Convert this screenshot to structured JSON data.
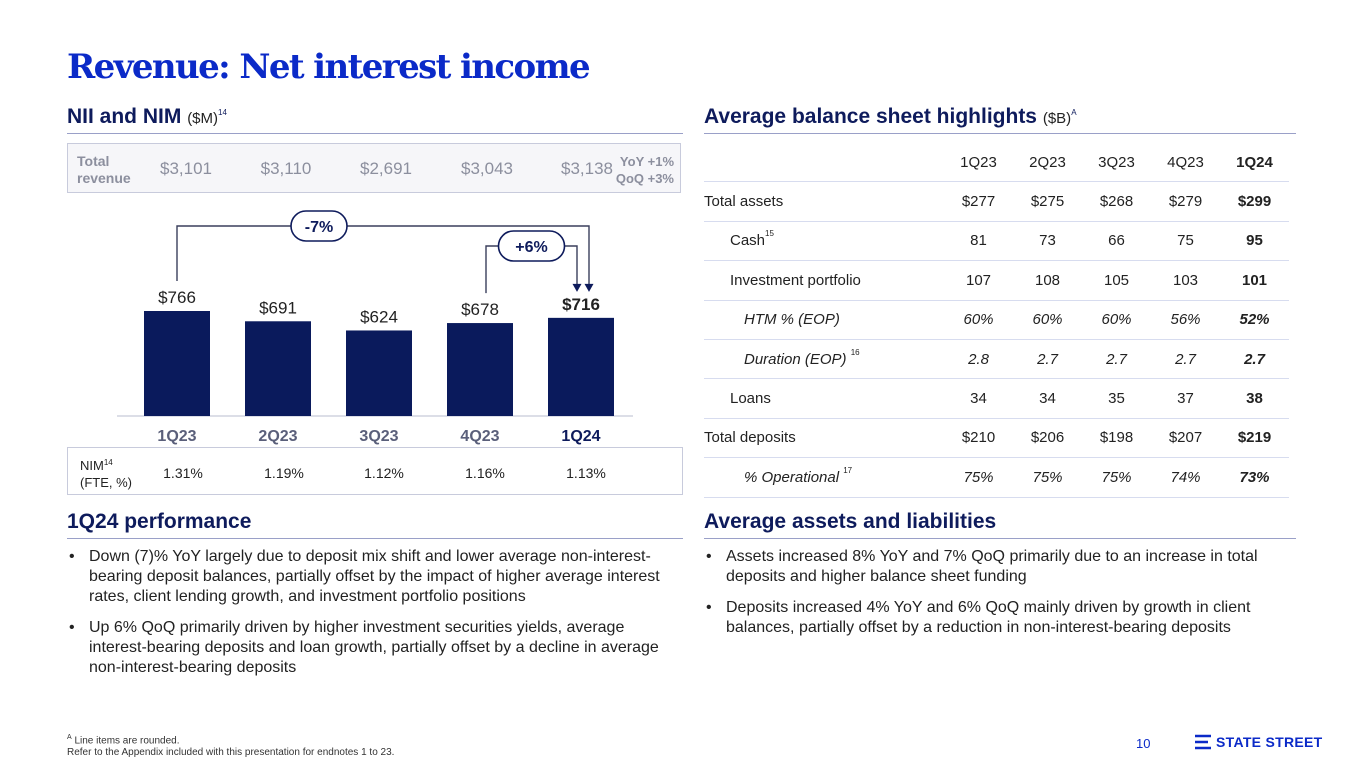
{
  "title": "Revenue: Net interest income",
  "nii_section": {
    "heading": "NII and NIM",
    "unit": "($M)",
    "footnote": "14"
  },
  "total_revenue": {
    "label_line1": "Total",
    "label_line2": "revenue",
    "values": [
      "$3,101",
      "$3,110",
      "$2,691",
      "$3,043",
      "$3,138"
    ],
    "yoy": "YoY +1%",
    "qoq": "QoQ +3%"
  },
  "chart_data": {
    "type": "bar",
    "title": "NII and NIM ($M)",
    "categories": [
      "1Q23",
      "2Q23",
      "3Q23",
      "4Q23",
      "1Q24"
    ],
    "values": [
      766,
      691,
      624,
      678,
      716
    ],
    "value_labels": [
      "$766",
      "$691",
      "$624",
      "$678",
      "$716"
    ],
    "ylim": [
      0,
      780
    ],
    "xlabel": "",
    "ylabel": "",
    "annotations": [
      {
        "label": "-7%",
        "from": "1Q23",
        "to": "1Q24"
      },
      {
        "label": "+6%",
        "from": "4Q23",
        "to": "1Q24"
      }
    ],
    "highlight": "1Q24",
    "bar_color": "#0a1a5c"
  },
  "nim": {
    "label": "NIM",
    "footnote": "14",
    "sublabel": "(FTE, %)",
    "values": [
      "1.31%",
      "1.19%",
      "1.12%",
      "1.16%",
      "1.13%"
    ]
  },
  "performance": {
    "heading": "1Q24 performance",
    "bullets": [
      "Down (7)% YoY largely due to deposit mix shift and lower average non-interest-bearing deposit balances, partially offset by the impact of higher average interest rates, client lending growth, and investment portfolio positions",
      "Up 6% QoQ primarily driven by higher investment securities yields, average interest-bearing deposits and loan growth, partially offset by a decline in average non-interest-bearing deposits"
    ]
  },
  "balance_sheet": {
    "heading": "Average balance sheet highlights",
    "unit": "($B)",
    "footnote": "A",
    "columns": [
      "1Q23",
      "2Q23",
      "3Q23",
      "4Q23",
      "1Q24"
    ],
    "rows": [
      {
        "label": "Total assets",
        "values": [
          "$277",
          "$275",
          "$268",
          "$279",
          "$299"
        ]
      },
      {
        "label": "Cash",
        "sup": "15",
        "values": [
          "81",
          "73",
          "66",
          "75",
          "95"
        ]
      },
      {
        "label": "Investment portfolio",
        "values": [
          "107",
          "108",
          "105",
          "103",
          "101"
        ]
      },
      {
        "label": "HTM % (EOP)",
        "values": [
          "60%",
          "60%",
          "60%",
          "56%",
          "52%"
        ]
      },
      {
        "label": "Duration (EOP)",
        "sup": "16",
        "values": [
          "2.8",
          "2.7",
          "2.7",
          "2.7",
          "2.7"
        ]
      },
      {
        "label": "Loans",
        "values": [
          "34",
          "34",
          "35",
          "37",
          "38"
        ]
      },
      {
        "label": "Total deposits",
        "values": [
          "$210",
          "$206",
          "$198",
          "$207",
          "$219"
        ]
      },
      {
        "label": "% Operational",
        "sup": "17",
        "values": [
          "75%",
          "75%",
          "75%",
          "74%",
          "73%"
        ]
      }
    ]
  },
  "assets_liabilities": {
    "heading": "Average assets and liabilities",
    "bullets": [
      "Assets increased 8% YoY and 7% QoQ primarily due to an increase in total deposits and higher balance sheet funding",
      "Deposits increased 4% YoY and 6% QoQ mainly driven by growth in client balances, partially offset by a reduction in non-interest-bearing deposits"
    ]
  },
  "footer": {
    "marker": "A",
    "line1": "Line items are rounded.",
    "line2": "Refer to the Appendix included with this presentation for endnotes 1 to 23."
  },
  "page_number": "10",
  "logo_text": "STATE STREET",
  "colors": {
    "brand": "#0b2ac8",
    "navy": "#0a1a5c",
    "rule": "#9aa0c8"
  }
}
